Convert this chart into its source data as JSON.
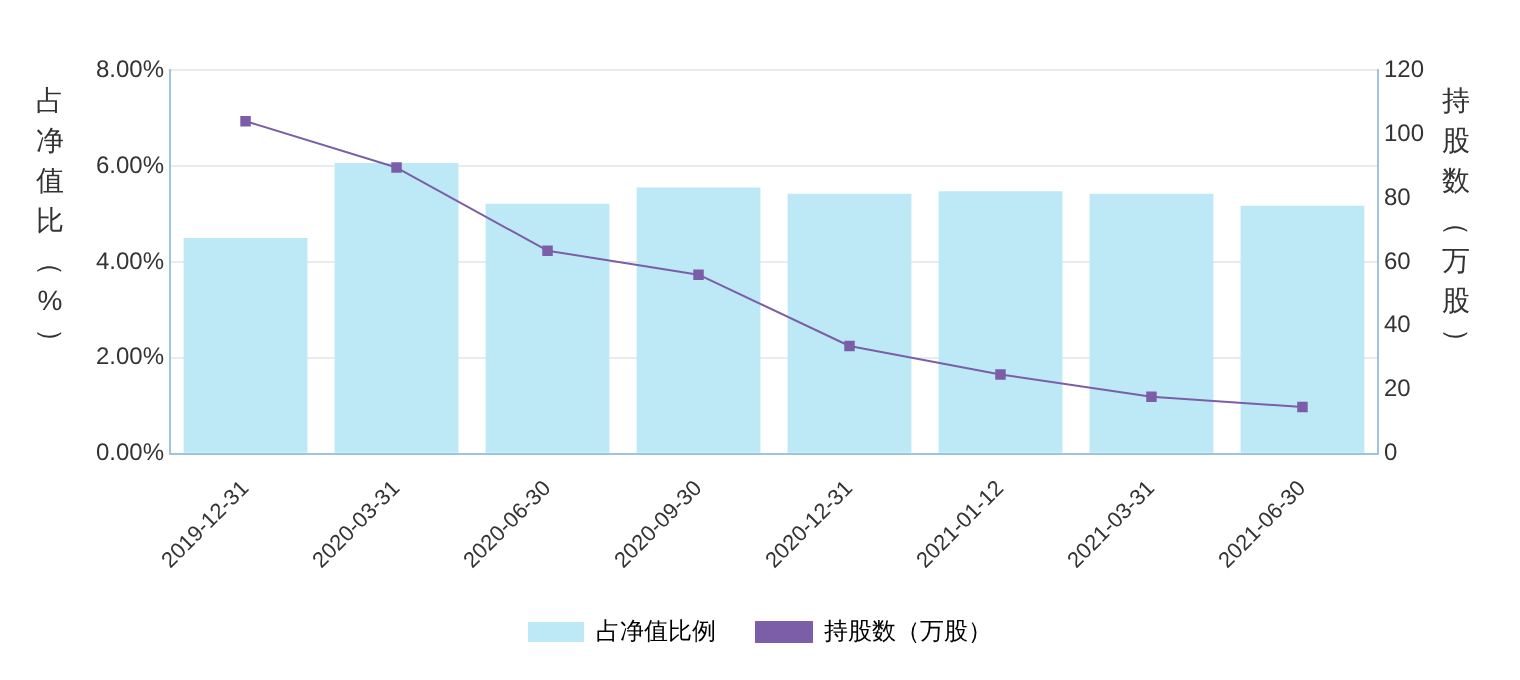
{
  "chart_data": {
    "type": "bar",
    "ylabel": "占净值比（%）",
    "y2label": "持股数（万股）",
    "categories": [
      "2019-12-31",
      "2020-03-31",
      "2020-06-30",
      "2020-09-30",
      "2020-12-31",
      "2021-01-12",
      "2021-03-31",
      "2021-06-30"
    ],
    "series": [
      {
        "name": "占净值比例",
        "color": "#bde9f7",
        "values": [
          4.5,
          6.06,
          5.21,
          5.55,
          5.42,
          5.47,
          5.42,
          5.17
        ]
      },
      {
        "name": "持股数（万股）",
        "type": "line",
        "axis": "y2",
        "color": "#7b5ea7",
        "marker": "square",
        "values": [
          104,
          89.5,
          63.5,
          56,
          33.7,
          24.8,
          17.8,
          14.6
        ]
      }
    ],
    "ylim": [
      0,
      8
    ],
    "yticks": [
      {
        "value": 0,
        "label": "0.00%"
      },
      {
        "value": 2,
        "label": "2.00%"
      },
      {
        "value": 4,
        "label": "4.00%"
      },
      {
        "value": 6,
        "label": "6.00%"
      },
      {
        "value": 8,
        "label": "8.00%"
      }
    ],
    "y2lim": [
      0,
      120
    ],
    "y2ticks": [
      0,
      20,
      40,
      60,
      80,
      100,
      120
    ],
    "grid": "y",
    "legend": "bottom"
  }
}
